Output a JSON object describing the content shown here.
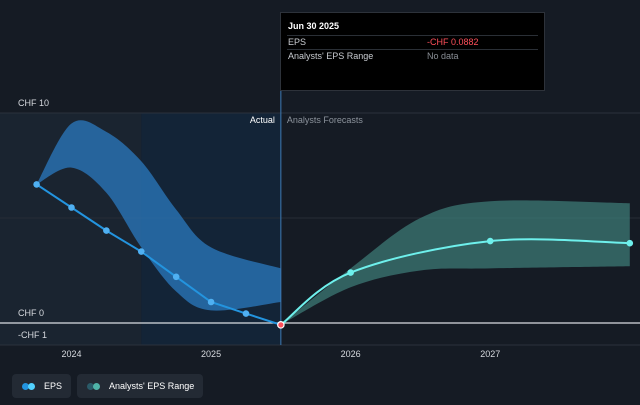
{
  "tooltip": {
    "date": "Jun 30 2025",
    "rows": [
      {
        "label": "EPS",
        "value": "-CHF 0.0882"
      },
      {
        "label": "Analysts' EPS Range",
        "value": "No data"
      }
    ]
  },
  "sections": {
    "actual": "Actual",
    "forecast": "Analysts Forecasts"
  },
  "legend": [
    {
      "label": "EPS",
      "color_a": "#2394df",
      "color_b": "#52d2ff"
    },
    {
      "label": "Analysts' EPS Range",
      "color_a": "#2a5a68",
      "color_b": "#4fb3a8"
    }
  ],
  "colors": {
    "eps_actual": "#2394df",
    "eps_forecast": "#6ef0ec",
    "range_actual": "#2b79c0",
    "range_forecast": "#3f7f7a",
    "highlight": "#ff4f5a"
  },
  "chart_data": {
    "type": "line",
    "ylim": [
      -1,
      10
    ],
    "y_ticks": [
      {
        "label": "CHF 10",
        "value": 10
      },
      {
        "label": "CHF 0",
        "value": 0
      },
      {
        "label": "-CHF 1",
        "value": -1
      }
    ],
    "x_ticks": [
      {
        "label": "2024",
        "value": 2024.0
      },
      {
        "label": "2025",
        "value": 2025.0
      },
      {
        "label": "2026",
        "value": 2026.0
      },
      {
        "label": "2027",
        "value": 2027.0
      }
    ],
    "x_range": [
      2023.76,
      2027.98
    ],
    "divider_x": 2025.5,
    "past_shade_start": 2024.5,
    "series": [
      {
        "name": "EPS",
        "points": [
          [
            2023.75,
            6.6
          ],
          [
            2024.0,
            5.5
          ],
          [
            2024.25,
            4.4
          ],
          [
            2024.5,
            3.4
          ],
          [
            2024.75,
            2.2
          ],
          [
            2025.0,
            1.0
          ],
          [
            2025.25,
            0.45
          ],
          [
            2025.5,
            -0.0882
          ]
        ]
      },
      {
        "name": "EPS forecast",
        "points": [
          [
            2025.5,
            -0.0882
          ],
          [
            2026.0,
            2.4
          ],
          [
            2027.0,
            3.9
          ],
          [
            2028.0,
            3.8
          ]
        ]
      }
    ],
    "ranges": [
      {
        "name": "Analysts' EPS Range",
        "upper": [
          [
            2023.75,
            6.6
          ],
          [
            2024.0,
            9.5
          ],
          [
            2024.25,
            9.1
          ],
          [
            2024.5,
            7.7
          ],
          [
            2024.75,
            5.4
          ],
          [
            2025.0,
            3.6
          ],
          [
            2025.5,
            2.6
          ]
        ],
        "lower": [
          [
            2023.75,
            6.6
          ],
          [
            2024.0,
            7.4
          ],
          [
            2024.25,
            6.2
          ],
          [
            2024.5,
            3.6
          ],
          [
            2024.75,
            1.5
          ],
          [
            2025.0,
            0.6
          ],
          [
            2025.5,
            1.0
          ]
        ]
      },
      {
        "name": "Analysts' EPS Range",
        "upper": [
          [
            2025.5,
            -0.0882
          ],
          [
            2026.0,
            2.6
          ],
          [
            2026.5,
            5.0
          ],
          [
            2027.0,
            5.8
          ],
          [
            2028.0,
            5.7
          ]
        ],
        "lower": [
          [
            2025.5,
            -0.0882
          ],
          [
            2026.0,
            1.7
          ],
          [
            2026.5,
            2.5
          ],
          [
            2027.0,
            2.6
          ],
          [
            2028.0,
            2.7
          ]
        ]
      }
    ]
  }
}
